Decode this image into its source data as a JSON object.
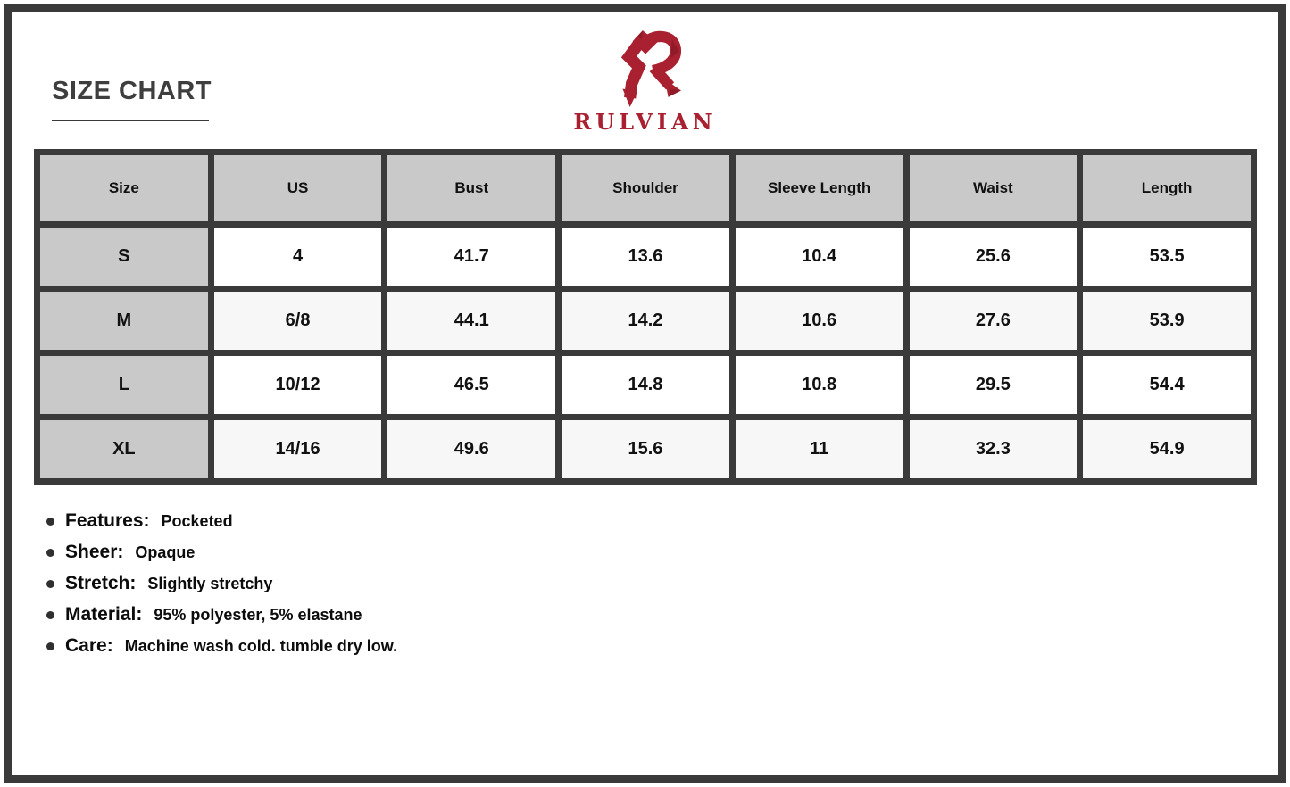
{
  "page": {
    "title": "SIZE CHART",
    "brand_name": "RULVIAN"
  },
  "colors": {
    "brand_red": "#a92130",
    "frame_dark": "#3a3a3a",
    "header_gray": "#c9c9c9",
    "row_alt": "#f7f7f7"
  },
  "chart_data": {
    "type": "table",
    "title": "SIZE CHART",
    "columns": [
      "Size",
      "US",
      "Bust",
      "Shoulder",
      "Sleeve Length",
      "Waist",
      "Length"
    ],
    "rows": [
      [
        "S",
        "4",
        "41.7",
        "13.6",
        "10.4",
        "25.6",
        "53.5"
      ],
      [
        "M",
        "6/8",
        "44.1",
        "14.2",
        "10.6",
        "27.6",
        "53.9"
      ],
      [
        "L",
        "10/12",
        "46.5",
        "14.8",
        "10.8",
        "29.5",
        "54.4"
      ],
      [
        "XL",
        "14/16",
        "49.6",
        "15.6",
        "11",
        "32.3",
        "54.9"
      ]
    ]
  },
  "details": [
    {
      "label": "Features:",
      "value": "Pocketed"
    },
    {
      "label": "Sheer:",
      "value": "Opaque"
    },
    {
      "label": "Stretch:",
      "value": "Slightly stretchy"
    },
    {
      "label": "Material:",
      "value": "95% polyester, 5% elastane"
    },
    {
      "label": "Care:",
      "value": "Machine wash cold. tumble dry low."
    }
  ]
}
